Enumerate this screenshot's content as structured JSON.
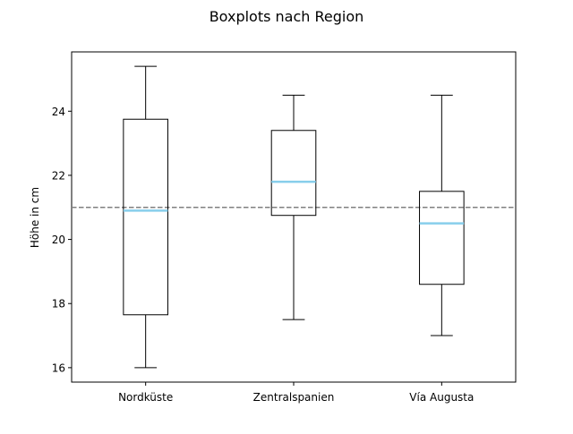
{
  "chart_data": {
    "type": "boxplot",
    "title": "Boxplots nach Region",
    "xlabel": "",
    "ylabel": "Höhe in cm",
    "ylim": [
      15.55,
      25.85
    ],
    "yticks": [
      16,
      18,
      20,
      22,
      24
    ],
    "grid": false,
    "reference_line": {
      "y": 21.0,
      "style": "dashed",
      "color": "#808080"
    },
    "median_color": "#87ceeb",
    "box_color": "#000000",
    "categories": [
      "Nordküste",
      "Zentralspanien",
      "Vía Augusta"
    ],
    "boxes": [
      {
        "category": "Nordküste",
        "whisker_low": 16.0,
        "q1": 17.65,
        "median": 20.9,
        "q3": 23.75,
        "whisker_high": 25.4
      },
      {
        "category": "Zentralspanien",
        "whisker_low": 17.5,
        "q1": 20.75,
        "median": 21.8,
        "q3": 23.4,
        "whisker_high": 24.5
      },
      {
        "category": "Vía Augusta",
        "whisker_low": 17.0,
        "q1": 18.6,
        "median": 20.5,
        "q3": 21.5,
        "whisker_high": 24.5
      }
    ]
  }
}
